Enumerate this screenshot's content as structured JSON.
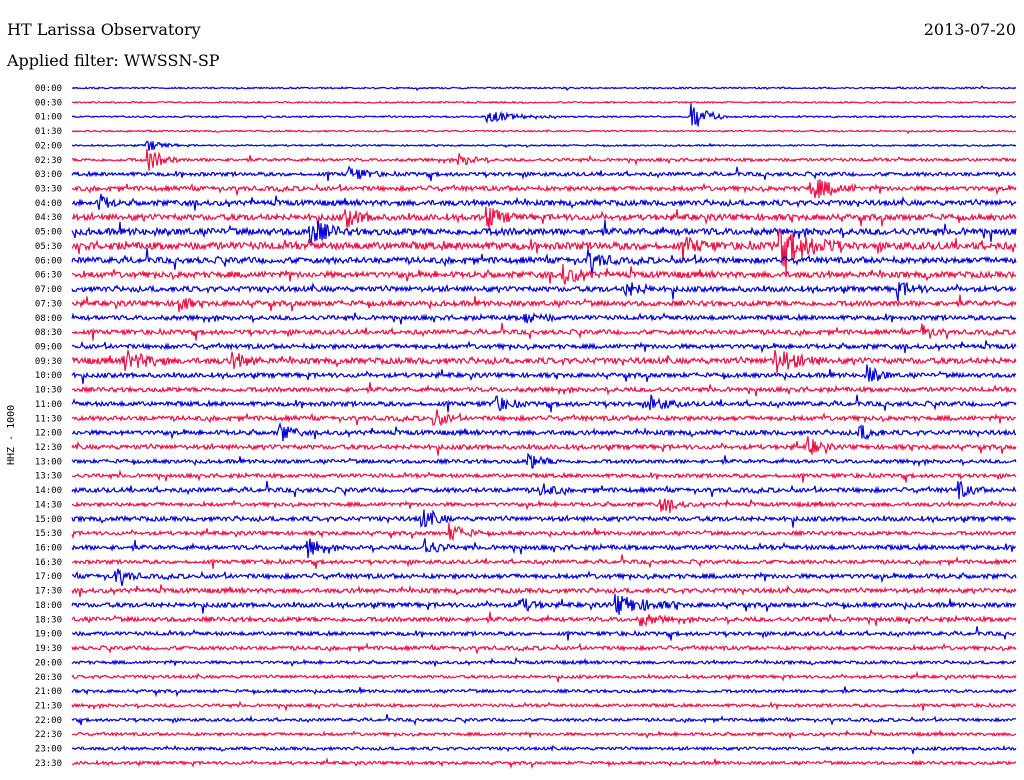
{
  "header": {
    "title": "HT Larissa Observatory",
    "date": "2013-07-20",
    "filter": "Applied filter: WWSSN-SP"
  },
  "chart_data": {
    "type": "line",
    "ylabel": "HHZ - 1000",
    "row_labels": [
      "00:00",
      "00:30",
      "01:00",
      "01:30",
      "02:00",
      "02:30",
      "03:00",
      "03:30",
      "04:00",
      "04:30",
      "05:00",
      "05:30",
      "06:00",
      "06:30",
      "07:00",
      "07:30",
      "08:00",
      "08:30",
      "09:00",
      "09:30",
      "10:00",
      "10:30",
      "11:00",
      "11:30",
      "12:00",
      "12:30",
      "13:00",
      "13:30",
      "14:00",
      "14:30",
      "15:00",
      "15:30",
      "16:00",
      "16:30",
      "17:00",
      "17:30",
      "18:00",
      "18:30",
      "19:00",
      "19:30",
      "20:00",
      "20:30",
      "21:00",
      "21:30",
      "22:00",
      "22:30",
      "23:00",
      "23:30"
    ],
    "colors": [
      "#0000dd",
      "#ee1144"
    ],
    "row_activity": [
      1,
      1,
      1,
      1,
      1,
      3,
      4,
      5,
      6,
      7,
      8,
      9,
      7,
      7,
      6,
      6,
      5,
      5,
      5,
      7,
      5,
      5,
      5,
      5,
      5,
      5,
      4,
      4,
      5,
      4,
      5,
      4,
      5,
      4,
      5,
      5,
      5,
      5,
      4,
      4,
      3,
      3,
      3,
      3,
      3,
      3,
      3,
      3
    ],
    "events": [
      {
        "row": 2,
        "minute": 19.7,
        "amplitude": 9,
        "duration": 1
      },
      {
        "row": 2,
        "minute": 13.2,
        "amplitude": 3,
        "duration": 2
      },
      {
        "row": 4,
        "minute": 2.4,
        "amplitude": 3,
        "duration": 1
      },
      {
        "row": 5,
        "minute": 2.4,
        "amplitude": 6,
        "duration": 1
      },
      {
        "row": 5,
        "minute": 12.3,
        "amplitude": 3,
        "duration": 1
      },
      {
        "row": 6,
        "minute": 8.8,
        "amplitude": 4,
        "duration": 1
      },
      {
        "row": 7,
        "minute": 23.5,
        "amplitude": 6,
        "duration": 1.5
      },
      {
        "row": 8,
        "minute": 0.9,
        "amplitude": 4,
        "duration": 0.6
      },
      {
        "row": 9,
        "minute": 8.7,
        "amplitude": 5,
        "duration": 1
      },
      {
        "row": 9,
        "minute": 13.2,
        "amplitude": 5,
        "duration": 1
      },
      {
        "row": 10,
        "minute": 7.5,
        "amplitude": 9,
        "duration": 1
      },
      {
        "row": 11,
        "minute": 22.5,
        "amplitude": 10,
        "duration": 2
      },
      {
        "row": 11,
        "minute": 19.5,
        "amplitude": 4,
        "duration": 1
      },
      {
        "row": 12,
        "minute": 16.4,
        "amplitude": 5,
        "duration": 1
      },
      {
        "row": 13,
        "minute": 15.6,
        "amplitude": 5,
        "duration": 1
      },
      {
        "row": 14,
        "minute": 17.6,
        "amplitude": 4,
        "duration": 1
      },
      {
        "row": 14,
        "minute": 26.2,
        "amplitude": 4,
        "duration": 1
      },
      {
        "row": 15,
        "minute": 3.4,
        "amplitude": 6,
        "duration": 0.5
      },
      {
        "row": 16,
        "minute": 14.4,
        "amplitude": 3,
        "duration": 1
      },
      {
        "row": 17,
        "minute": 27.0,
        "amplitude": 5,
        "duration": 0.7
      },
      {
        "row": 19,
        "minute": 1.7,
        "amplitude": 5,
        "duration": 1.5
      },
      {
        "row": 19,
        "minute": 5.1,
        "amplitude": 4,
        "duration": 1
      },
      {
        "row": 19,
        "minute": 22.3,
        "amplitude": 7,
        "duration": 1.5
      },
      {
        "row": 20,
        "minute": 25.3,
        "amplitude": 5,
        "duration": 0.8
      },
      {
        "row": 22,
        "minute": 13.4,
        "amplitude": 4,
        "duration": 1
      },
      {
        "row": 22,
        "minute": 18.4,
        "amplitude": 4,
        "duration": 1
      },
      {
        "row": 23,
        "minute": 11.5,
        "amplitude": 5,
        "duration": 0.8
      },
      {
        "row": 24,
        "minute": 6.6,
        "amplitude": 5,
        "duration": 0.8
      },
      {
        "row": 24,
        "minute": 25.0,
        "amplitude": 5,
        "duration": 0.8
      },
      {
        "row": 25,
        "minute": 23.4,
        "amplitude": 5,
        "duration": 0.8
      },
      {
        "row": 26,
        "minute": 14.5,
        "amplitude": 4,
        "duration": 1
      },
      {
        "row": 28,
        "minute": 14.9,
        "amplitude": 4,
        "duration": 0.8
      },
      {
        "row": 28,
        "minute": 28.2,
        "amplitude": 4,
        "duration": 0.8
      },
      {
        "row": 29,
        "minute": 18.7,
        "amplitude": 4,
        "duration": 1
      },
      {
        "row": 30,
        "minute": 11.1,
        "amplitude": 5,
        "duration": 1
      },
      {
        "row": 31,
        "minute": 12.0,
        "amplitude": 5,
        "duration": 1
      },
      {
        "row": 32,
        "minute": 7.5,
        "amplitude": 5,
        "duration": 0.8
      },
      {
        "row": 32,
        "minute": 11.2,
        "amplitude": 5,
        "duration": 0.8
      },
      {
        "row": 34,
        "minute": 1.4,
        "amplitude": 4,
        "duration": 0.8
      },
      {
        "row": 36,
        "minute": 14.2,
        "amplitude": 4,
        "duration": 1
      },
      {
        "row": 36,
        "minute": 17.3,
        "amplitude": 5,
        "duration": 2
      },
      {
        "row": 37,
        "minute": 18.1,
        "amplitude": 3,
        "duration": 1
      }
    ]
  }
}
